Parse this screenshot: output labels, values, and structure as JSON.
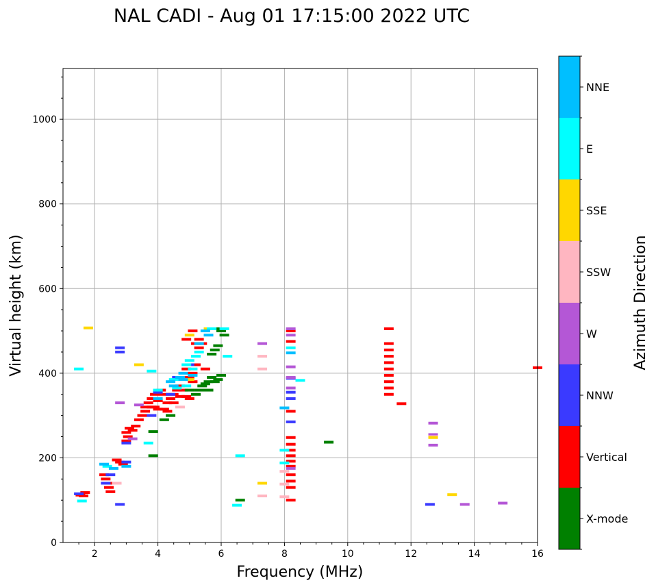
{
  "chart_data": {
    "type": "scatter",
    "title": "NAL CADI - Aug 01 17:15:00 2022 UTC",
    "xlabel": "Frequency (MHz)",
    "ylabel": "Virtual height (km)",
    "xlim": [
      1,
      16
    ],
    "ylim": [
      0,
      1120
    ],
    "xticks": [
      2,
      4,
      6,
      8,
      10,
      12,
      14,
      16
    ],
    "yticks": [
      0,
      200,
      400,
      600,
      800,
      1000
    ],
    "grid": true,
    "colorbar": {
      "label": "Azimuth Direction",
      "categories": [
        "X-mode",
        "Vertical",
        "NNW",
        "W",
        "SSW",
        "SSE",
        "E",
        "NNE"
      ],
      "colors": [
        "#008000",
        "#ff0000",
        "#3a3aff",
        "#b457d6",
        "#ffb6c1",
        "#ffd700",
        "#00ffff",
        "#00bfff"
      ]
    },
    "series": [
      {
        "name": "Vertical",
        "points": [
          [
            1.55,
            112
          ],
          [
            1.65,
            110
          ],
          [
            1.7,
            118
          ],
          [
            2.3,
            160
          ],
          [
            2.35,
            150
          ],
          [
            2.4,
            140
          ],
          [
            2.45,
            130
          ],
          [
            2.5,
            120
          ],
          [
            2.7,
            195
          ],
          [
            2.8,
            190
          ],
          [
            2.9,
            185
          ],
          [
            3.0,
            240
          ],
          [
            3.0,
            260
          ],
          [
            3.05,
            250
          ],
          [
            3.1,
            270
          ],
          [
            3.2,
            265
          ],
          [
            3.3,
            275
          ],
          [
            3.4,
            290
          ],
          [
            3.5,
            300
          ],
          [
            3.6,
            310
          ],
          [
            3.6,
            320
          ],
          [
            3.7,
            330
          ],
          [
            3.8,
            320
          ],
          [
            3.8,
            340
          ],
          [
            3.9,
            350
          ],
          [
            3.9,
            320
          ],
          [
            4.0,
            315
          ],
          [
            4.0,
            335
          ],
          [
            4.1,
            360
          ],
          [
            4.2,
            350
          ],
          [
            4.2,
            315
          ],
          [
            4.3,
            330
          ],
          [
            4.4,
            340
          ],
          [
            4.5,
            350
          ],
          [
            4.5,
            330
          ],
          [
            4.6,
            360
          ],
          [
            4.7,
            370
          ],
          [
            4.7,
            345
          ],
          [
            4.8,
            360
          ],
          [
            4.9,
            345
          ],
          [
            5.0,
            340
          ],
          [
            5.0,
            390
          ],
          [
            5.1,
            400
          ],
          [
            5.1,
            380
          ],
          [
            5.2,
            420
          ],
          [
            5.2,
            470
          ],
          [
            5.3,
            480
          ],
          [
            5.4,
            470
          ],
          [
            5.5,
            410
          ],
          [
            5.1,
            500
          ],
          [
            4.9,
            480
          ],
          [
            5.3,
            460
          ],
          [
            4.3,
            310
          ],
          [
            4.9,
            410
          ],
          [
            8.2,
            100
          ],
          [
            8.2,
            130
          ],
          [
            8.2,
            145
          ],
          [
            8.2,
            160
          ],
          [
            8.2,
            180
          ],
          [
            8.2,
            192
          ],
          [
            8.2,
            205
          ],
          [
            8.2,
            218
          ],
          [
            8.2,
            232
          ],
          [
            8.2,
            248
          ],
          [
            8.2,
            310
          ],
          [
            8.2,
            475
          ],
          [
            8.2,
            500
          ],
          [
            11.3,
            350
          ],
          [
            11.3,
            365
          ],
          [
            11.3,
            380
          ],
          [
            11.3,
            395
          ],
          [
            11.3,
            410
          ],
          [
            11.3,
            425
          ],
          [
            11.3,
            440
          ],
          [
            11.3,
            455
          ],
          [
            11.3,
            470
          ],
          [
            11.3,
            505
          ],
          [
            11.7,
            328
          ],
          [
            16.0,
            413
          ]
        ]
      },
      {
        "name": "X-mode",
        "points": [
          [
            3.85,
            262
          ],
          [
            3.85,
            205
          ],
          [
            4.2,
            290
          ],
          [
            4.4,
            300
          ],
          [
            5.0,
            360
          ],
          [
            5.2,
            350
          ],
          [
            5.3,
            360
          ],
          [
            5.4,
            370
          ],
          [
            5.5,
            375
          ],
          [
            5.6,
            380
          ],
          [
            5.6,
            360
          ],
          [
            5.7,
            390
          ],
          [
            5.8,
            380
          ],
          [
            5.9,
            385
          ],
          [
            6.0,
            395
          ],
          [
            5.8,
            455
          ],
          [
            5.9,
            465
          ],
          [
            5.7,
            445
          ],
          [
            5.95,
            505
          ],
          [
            6.0,
            500
          ],
          [
            6.1,
            490
          ],
          [
            6.6,
            100
          ],
          [
            9.4,
            237
          ]
        ]
      },
      {
        "name": "NNW",
        "points": [
          [
            1.5,
            115
          ],
          [
            2.8,
            460
          ],
          [
            2.8,
            450
          ],
          [
            3.0,
            235
          ],
          [
            3.0,
            190
          ],
          [
            2.5,
            160
          ],
          [
            4.4,
            350
          ],
          [
            4.6,
            390
          ],
          [
            5.0,
            420
          ],
          [
            8.2,
            285
          ],
          [
            8.2,
            340
          ],
          [
            8.2,
            355
          ],
          [
            8.2,
            388
          ],
          [
            12.6,
            90
          ],
          [
            2.35,
            140
          ],
          [
            2.8,
            90
          ],
          [
            3.8,
            300
          ],
          [
            4.0,
            355
          ]
        ]
      },
      {
        "name": "W",
        "points": [
          [
            3.4,
            325
          ],
          [
            2.8,
            330
          ],
          [
            7.3,
            470
          ],
          [
            8.2,
            390
          ],
          [
            8.2,
            415
          ],
          [
            8.2,
            490
          ],
          [
            8.2,
            505
          ],
          [
            12.7,
            282
          ],
          [
            12.7,
            255
          ],
          [
            12.7,
            230
          ],
          [
            13.7,
            90
          ],
          [
            14.9,
            93
          ],
          [
            8.2,
            365
          ],
          [
            3.2,
            245
          ],
          [
            8.2,
            175
          ]
        ]
      },
      {
        "name": "SSW",
        "points": [
          [
            7.3,
            440
          ],
          [
            7.3,
            410
          ],
          [
            7.3,
            110
          ],
          [
            8.0,
            168
          ],
          [
            8.0,
            138
          ],
          [
            8.0,
            108
          ],
          [
            2.7,
            140
          ],
          [
            4.7,
            320
          ],
          [
            12.7,
            250
          ]
        ]
      },
      {
        "name": "SSE",
        "points": [
          [
            1.8,
            507
          ],
          [
            3.4,
            420
          ],
          [
            5.0,
            385
          ],
          [
            5.6,
            505
          ],
          [
            7.3,
            140
          ],
          [
            13.3,
            113
          ],
          [
            12.7,
            248
          ],
          [
            5.0,
            490
          ]
        ]
      },
      {
        "name": "E",
        "points": [
          [
            1.5,
            410
          ],
          [
            2.4,
            180
          ],
          [
            3.8,
            405
          ],
          [
            4.0,
            360
          ],
          [
            4.5,
            385
          ],
          [
            4.6,
            365
          ],
          [
            4.9,
            370
          ],
          [
            4.9,
            420
          ],
          [
            5.0,
            430
          ],
          [
            5.2,
            440
          ],
          [
            5.3,
            450
          ],
          [
            5.7,
            505
          ],
          [
            6.1,
            505
          ],
          [
            6.2,
            440
          ],
          [
            8.2,
            460
          ],
          [
            8.0,
            218
          ],
          [
            8.0,
            188
          ],
          [
            6.6,
            205
          ],
          [
            6.5,
            88
          ],
          [
            8.5,
            383
          ],
          [
            3.7,
            235
          ],
          [
            1.6,
            98
          ],
          [
            5.1,
            410
          ]
        ]
      },
      {
        "name": "NNE",
        "points": [
          [
            2.3,
            185
          ],
          [
            2.6,
            175
          ],
          [
            3.0,
            180
          ],
          [
            4.0,
            340
          ],
          [
            4.5,
            370
          ],
          [
            4.7,
            390
          ],
          [
            4.8,
            385
          ],
          [
            5.1,
            395
          ],
          [
            5.3,
            470
          ],
          [
            5.5,
            500
          ],
          [
            5.6,
            490
          ],
          [
            8.0,
            318
          ],
          [
            8.2,
            448
          ],
          [
            4.4,
            380
          ],
          [
            4.8,
            400
          ]
        ]
      }
    ]
  }
}
